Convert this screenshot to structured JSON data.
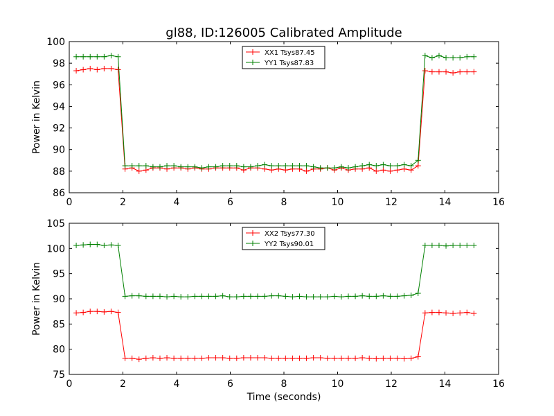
{
  "colors": {
    "xx": "#ff0000",
    "yy": "#008000",
    "axis": "#000000"
  },
  "figure": {
    "title": "gl88, ID:126005 Calibrated Amplitude",
    "xlabel": "Time (seconds)"
  },
  "chart_data": [
    {
      "type": "line",
      "title": "gl88, ID:126005 Calibrated Amplitude",
      "xlabel": "",
      "ylabel": "Power in Kelvin",
      "xlim": [
        0,
        16
      ],
      "ylim": [
        86,
        100
      ],
      "xticks": [
        0,
        2,
        4,
        6,
        8,
        10,
        12,
        14,
        16
      ],
      "yticks": [
        86,
        88,
        90,
        92,
        94,
        96,
        98,
        100
      ],
      "grid": false,
      "legend_placement": "top-center",
      "x": [
        0.26,
        0.52,
        0.78,
        1.04,
        1.3,
        1.56,
        1.82,
        2.08,
        2.34,
        2.6,
        2.86,
        3.12,
        3.38,
        3.64,
        3.9,
        4.16,
        4.42,
        4.68,
        4.94,
        5.2,
        5.46,
        5.72,
        5.98,
        6.24,
        6.5,
        6.76,
        7.02,
        7.28,
        7.54,
        7.8,
        8.06,
        8.32,
        8.58,
        8.84,
        9.1,
        9.36,
        9.62,
        9.88,
        10.14,
        10.4,
        10.66,
        10.92,
        11.18,
        11.44,
        11.7,
        11.96,
        12.22,
        12.48,
        12.74,
        13.0,
        13.26,
        13.52,
        13.78,
        14.04,
        14.3,
        14.56,
        14.82,
        15.08
      ],
      "series": [
        {
          "name": "XX1 Tsys87.45",
          "color": "#ff0000",
          "values": [
            97.3,
            97.4,
            97.5,
            97.4,
            97.5,
            97.5,
            97.4,
            88.2,
            88.3,
            88.0,
            88.1,
            88.3,
            88.3,
            88.2,
            88.3,
            88.3,
            88.2,
            88.3,
            88.2,
            88.2,
            88.3,
            88.3,
            88.3,
            88.3,
            88.1,
            88.3,
            88.3,
            88.2,
            88.1,
            88.2,
            88.1,
            88.2,
            88.2,
            88.0,
            88.2,
            88.2,
            88.3,
            88.1,
            88.3,
            88.1,
            88.2,
            88.2,
            88.3,
            88.0,
            88.1,
            88.0,
            88.1,
            88.2,
            88.1,
            88.5,
            97.3,
            97.2,
            97.2,
            97.2,
            97.1,
            97.2,
            97.2,
            97.2
          ]
        },
        {
          "name": "YY1 Tsys87.83",
          "color": "#008000",
          "values": [
            98.6,
            98.6,
            98.6,
            98.6,
            98.6,
            98.7,
            98.6,
            88.5,
            88.5,
            88.5,
            88.5,
            88.4,
            88.4,
            88.5,
            88.5,
            88.4,
            88.4,
            88.4,
            88.3,
            88.4,
            88.4,
            88.5,
            88.5,
            88.5,
            88.4,
            88.4,
            88.5,
            88.6,
            88.5,
            88.5,
            88.5,
            88.5,
            88.5,
            88.5,
            88.4,
            88.3,
            88.3,
            88.3,
            88.4,
            88.3,
            88.4,
            88.5,
            88.6,
            88.5,
            88.6,
            88.5,
            88.5,
            88.6,
            88.5,
            89.0,
            98.7,
            98.5,
            98.7,
            98.5,
            98.5,
            98.5,
            98.6,
            98.6
          ]
        }
      ]
    },
    {
      "type": "line",
      "title": "",
      "xlabel": "Time (seconds)",
      "ylabel": "Power in Kelvin",
      "xlim": [
        0,
        16
      ],
      "ylim": [
        75,
        105
      ],
      "xticks": [
        0,
        2,
        4,
        6,
        8,
        10,
        12,
        14,
        16
      ],
      "yticks": [
        75,
        80,
        85,
        90,
        95,
        100,
        105
      ],
      "grid": false,
      "legend_placement": "top-center",
      "x": [
        0.26,
        0.52,
        0.78,
        1.04,
        1.3,
        1.56,
        1.82,
        2.08,
        2.34,
        2.6,
        2.86,
        3.12,
        3.38,
        3.64,
        3.9,
        4.16,
        4.42,
        4.68,
        4.94,
        5.2,
        5.46,
        5.72,
        5.98,
        6.24,
        6.5,
        6.76,
        7.02,
        7.28,
        7.54,
        7.8,
        8.06,
        8.32,
        8.58,
        8.84,
        9.1,
        9.36,
        9.62,
        9.88,
        10.14,
        10.4,
        10.66,
        10.92,
        11.18,
        11.44,
        11.7,
        11.96,
        12.22,
        12.48,
        12.74,
        13.0,
        13.26,
        13.52,
        13.78,
        14.04,
        14.3,
        14.56,
        14.82,
        15.08
      ],
      "series": [
        {
          "name": "XX2 Tsys77.30",
          "color": "#ff0000",
          "values": [
            87.2,
            87.3,
            87.5,
            87.5,
            87.4,
            87.5,
            87.3,
            78.2,
            78.2,
            78.0,
            78.2,
            78.3,
            78.2,
            78.3,
            78.2,
            78.2,
            78.2,
            78.2,
            78.2,
            78.3,
            78.3,
            78.3,
            78.2,
            78.2,
            78.3,
            78.3,
            78.3,
            78.3,
            78.2,
            78.2,
            78.2,
            78.2,
            78.2,
            78.2,
            78.3,
            78.3,
            78.2,
            78.2,
            78.2,
            78.2,
            78.2,
            78.3,
            78.2,
            78.1,
            78.2,
            78.2,
            78.2,
            78.1,
            78.2,
            78.5,
            87.2,
            87.3,
            87.3,
            87.2,
            87.1,
            87.2,
            87.3,
            87.1
          ]
        },
        {
          "name": "YY2 Tsys90.01",
          "color": "#008000",
          "values": [
            100.6,
            100.7,
            100.8,
            100.8,
            100.6,
            100.7,
            100.6,
            90.5,
            90.6,
            90.6,
            90.5,
            90.5,
            90.5,
            90.4,
            90.5,
            90.4,
            90.4,
            90.5,
            90.5,
            90.5,
            90.5,
            90.6,
            90.4,
            90.4,
            90.5,
            90.5,
            90.5,
            90.5,
            90.6,
            90.6,
            90.5,
            90.4,
            90.5,
            90.4,
            90.4,
            90.4,
            90.4,
            90.5,
            90.4,
            90.5,
            90.5,
            90.6,
            90.5,
            90.5,
            90.6,
            90.5,
            90.5,
            90.6,
            90.7,
            91.1,
            100.6,
            100.6,
            100.6,
            100.5,
            100.6,
            100.6,
            100.6,
            100.6
          ]
        }
      ]
    }
  ]
}
